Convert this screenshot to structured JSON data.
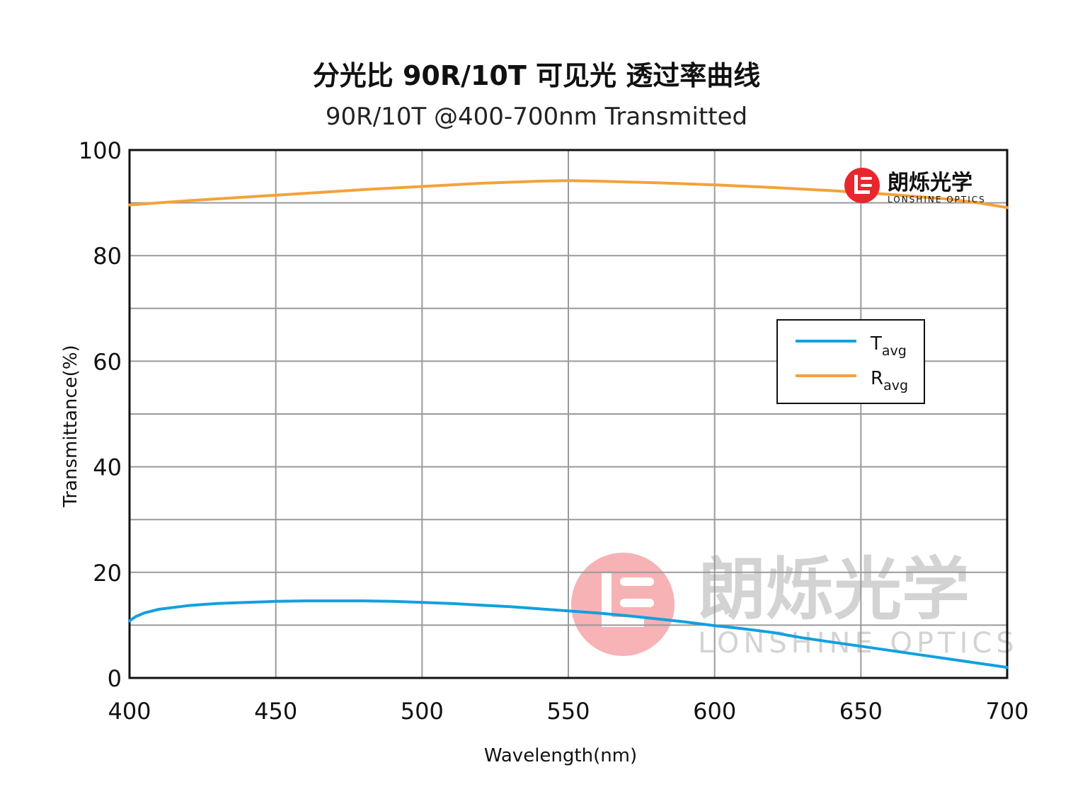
{
  "title": "分光比 90R/10T 可见光 透过率曲线",
  "subtitle": "90R/10T @400-700nm  Transmitted",
  "brand": {
    "name_cn": "朗烁光学",
    "name_en": "LONSHINE OPTICS",
    "color": "#e8262d"
  },
  "watermark": {
    "name_cn": "朗烁光学",
    "name_en": "LONSHINE OPTICS"
  },
  "chart_data": {
    "type": "line",
    "xlabel": "Wavelength(nm)",
    "ylabel": "Transmittance(%)",
    "xlim": [
      400,
      700
    ],
    "ylim": [
      0,
      100
    ],
    "x_ticks": [
      400,
      450,
      500,
      550,
      600,
      650,
      700
    ],
    "y_ticks": [
      0,
      20,
      40,
      60,
      80,
      100
    ],
    "grid": true,
    "legend_position": "right",
    "series": [
      {
        "name": "T",
        "name_sub": "avg",
        "color": "#12a0de",
        "x": [
          400,
          402,
          405,
          410,
          420,
          430,
          440,
          450,
          460,
          470,
          480,
          490,
          500,
          510,
          520,
          530,
          540,
          550,
          560,
          570,
          580,
          590,
          600,
          610,
          620,
          625,
          630,
          640,
          650,
          660,
          670,
          680,
          690,
          700
        ],
        "y": [
          10.8,
          11.6,
          12.3,
          13.0,
          13.7,
          14.1,
          14.3,
          14.5,
          14.6,
          14.6,
          14.6,
          14.5,
          14.3,
          14.1,
          13.8,
          13.5,
          13.1,
          12.7,
          12.3,
          11.8,
          11.2,
          10.6,
          9.9,
          9.3,
          8.6,
          8.1,
          7.6,
          6.8,
          6.0,
          5.2,
          4.4,
          3.6,
          2.8,
          2.0
        ]
      },
      {
        "name": "R",
        "name_sub": "avg",
        "color": "#f4a23a",
        "x": [
          400,
          420,
          440,
          460,
          480,
          500,
          520,
          540,
          550,
          560,
          580,
          600,
          620,
          640,
          660,
          680,
          690,
          700
        ],
        "y": [
          89.6,
          90.4,
          91.1,
          91.8,
          92.5,
          93.1,
          93.7,
          94.1,
          94.2,
          94.1,
          93.8,
          93.4,
          92.9,
          92.3,
          91.6,
          90.7,
          90.0,
          89.1
        ]
      }
    ]
  }
}
